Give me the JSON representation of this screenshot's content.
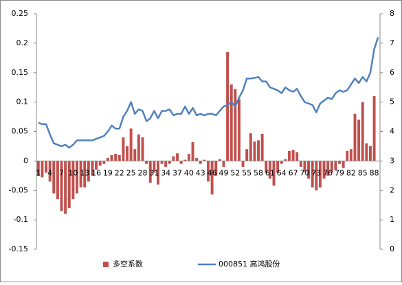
{
  "chart_data": {
    "type": "bar-line",
    "categories": [
      "1",
      null,
      null,
      "4",
      null,
      null,
      "7",
      null,
      null,
      "10",
      null,
      null,
      "13",
      null,
      null,
      "16",
      null,
      null,
      "19",
      null,
      null,
      "22",
      null,
      null,
      "25",
      null,
      null,
      "28",
      null,
      null,
      "31",
      null,
      null,
      "34",
      null,
      null,
      "37",
      null,
      null,
      "40",
      null,
      null,
      "43",
      null,
      null,
      "46",
      null,
      null,
      "49",
      null,
      null,
      "52",
      null,
      null,
      "55",
      null,
      null,
      "58",
      null,
      null,
      "61",
      null,
      null,
      "64",
      null,
      null,
      "67",
      null,
      null,
      "70",
      null,
      null,
      "73",
      null,
      null,
      "76",
      null,
      null,
      "79",
      null,
      null,
      "82",
      null,
      null,
      "85",
      null,
      null,
      "88",
      null
    ],
    "series": [
      {
        "name": "多空系数",
        "color": "#c0504d",
        "type": "bar",
        "values": [
          -0.025,
          -0.028,
          -0.02,
          -0.035,
          -0.055,
          -0.065,
          -0.085,
          -0.09,
          -0.08,
          -0.065,
          -0.055,
          -0.045,
          -0.045,
          -0.035,
          -0.025,
          -0.015,
          -0.008,
          -0.005,
          0.005,
          0.01,
          0.012,
          0.01,
          0.04,
          0.025,
          0.055,
          0.02,
          0.045,
          0.04,
          -0.005,
          -0.037,
          -0.02,
          -0.04,
          -0.005,
          -0.01,
          -0.005,
          0.008,
          0.013,
          -0.005,
          0.002,
          0.012,
          0.032,
          0.005,
          -0.005,
          0.002,
          -0.035,
          -0.057,
          -0.025,
          0.003,
          -0.01,
          0.185,
          0.13,
          0.122,
          0.105,
          -0.01,
          0.02,
          0.047,
          0.033,
          0.035,
          0.046,
          -0.02,
          -0.03,
          -0.042,
          -0.02,
          -0.005,
          0.003,
          0.017,
          0.019,
          0.015,
          -0.01,
          -0.018,
          -0.03,
          -0.045,
          -0.05,
          -0.045,
          -0.03,
          -0.025,
          -0.02,
          -0.015,
          -0.005,
          -0.012,
          0.017,
          0.02,
          0.08,
          0.07,
          0.1,
          0.03,
          0.025,
          0.11,
          null
        ]
      },
      {
        "name": "000851 高鸿股份",
        "color": "#4f81bd",
        "type": "line",
        "axis": "y2",
        "values": [
          4.3,
          4.25,
          4.25,
          3.9,
          3.6,
          3.55,
          3.5,
          3.55,
          3.45,
          3.55,
          3.7,
          3.7,
          3.7,
          3.7,
          3.7,
          3.75,
          3.8,
          3.85,
          4.0,
          4.2,
          4.1,
          4.1,
          4.5,
          4.7,
          5.0,
          4.6,
          4.75,
          4.7,
          4.35,
          4.45,
          4.7,
          4.45,
          4.7,
          4.7,
          4.75,
          4.55,
          4.6,
          4.6,
          4.85,
          4.6,
          4.8,
          4.55,
          4.6,
          4.55,
          4.6,
          4.6,
          4.55,
          4.7,
          4.85,
          4.9,
          5.0,
          4.85,
          5.15,
          5.4,
          5.8,
          5.8,
          5.82,
          5.85,
          5.7,
          5.7,
          5.5,
          5.45,
          5.4,
          5.3,
          5.5,
          5.4,
          5.35,
          5.45,
          5.2,
          5.0,
          4.95,
          4.9,
          4.65,
          4.95,
          5.05,
          5.15,
          5.1,
          5.3,
          5.4,
          5.35,
          5.4,
          5.6,
          5.8,
          5.65,
          5.85,
          5.7,
          6.0,
          6.8,
          7.2
        ]
      }
    ],
    "ylim": [
      -0.15,
      0.25
    ],
    "yticks": [
      -0.15,
      -0.1,
      -0.05,
      0,
      0.05,
      0.1,
      0.15,
      0.2,
      0.25
    ],
    "y2lim": [
      0,
      8
    ],
    "y2ticks": [
      0,
      1,
      2,
      3,
      4,
      5,
      6,
      7,
      8
    ],
    "legend": "bottom"
  }
}
